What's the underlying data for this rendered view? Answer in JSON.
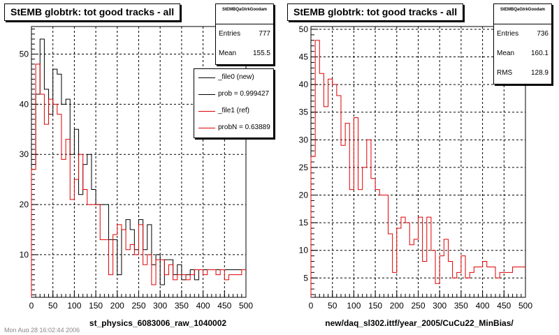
{
  "footer": "Mon Aug 28 16:02:44 2006",
  "chart_data": [
    {
      "type": "line",
      "title": "StEMB globtrk: tot good tracks - all",
      "xlabel": "st_physics_6083006_raw_1040002",
      "ylabel": "",
      "xlim": [
        0,
        500
      ],
      "ylim": [
        1.5,
        55.5
      ],
      "xticks": [
        "0",
        "50",
        "100",
        "150",
        "200",
        "250",
        "300",
        "350",
        "400",
        "450",
        "500"
      ],
      "yticks": [
        "10",
        "20",
        "30",
        "40",
        "50"
      ],
      "grid": true,
      "bin_edges": [
        0,
        10,
        20,
        30,
        40,
        50,
        60,
        70,
        80,
        90,
        100,
        110,
        120,
        130,
        140,
        150,
        160,
        170,
        180,
        190,
        200,
        210,
        220,
        230,
        240,
        250,
        260,
        270,
        280,
        290,
        300,
        310,
        320,
        330,
        340,
        350,
        360,
        370,
        380,
        390,
        400,
        410,
        420,
        430,
        440,
        450,
        460,
        470,
        480,
        490,
        500
      ],
      "series": [
        {
          "name": "_file0 (new)",
          "color": "#000000",
          "values": [
            28,
            42,
            53,
            43,
            38,
            47,
            46,
            40,
            41,
            30,
            35,
            22,
            28,
            30,
            23,
            20,
            20,
            20,
            13,
            13,
            6,
            15,
            17,
            15,
            11,
            17,
            11,
            16,
            8,
            10,
            4,
            9,
            9,
            6,
            8,
            5,
            6,
            7,
            5,
            7,
            7,
            7,
            7,
            7,
            7,
            7,
            7,
            7,
            7,
            7
          ]
        },
        {
          "name": "_file1 (ref)",
          "color": "#e00000",
          "values": [
            27,
            48,
            42,
            36,
            41,
            40,
            38,
            29,
            33,
            21,
            25,
            30,
            23,
            20,
            20,
            20,
            13,
            13,
            6,
            14,
            16,
            15,
            11,
            12,
            10,
            16,
            8,
            10,
            4,
            9,
            9,
            6,
            8,
            5,
            6,
            6,
            5,
            6,
            7,
            7,
            6,
            7,
            7,
            6,
            7,
            5,
            6,
            6,
            6,
            7
          ]
        }
      ],
      "stats": {
        "header": "StEMBQaGtrkGoodam",
        "entries": "777",
        "mean": "155.5"
      },
      "legend": [
        "_file0 (new)",
        "prob = 0.999427",
        "_file1 (ref)",
        "probN = 0.63889"
      ]
    },
    {
      "type": "line",
      "title": "StEMB globtrk: tot good tracks - all",
      "xlabel": "new/daq_sl302.ittf/year_2005/CuCu22_MinBias/",
      "ylabel": "",
      "xlim": [
        0,
        500
      ],
      "ylim": [
        1.5,
        50.5
      ],
      "xticks": [
        "0",
        "50",
        "100",
        "150",
        "200",
        "250",
        "300",
        "350",
        "400",
        "450",
        "500"
      ],
      "yticks": [
        "5",
        "10",
        "15",
        "20",
        "25",
        "30",
        "35",
        "40",
        "45",
        "50"
      ],
      "grid": true,
      "bin_edges": [
        0,
        10,
        20,
        30,
        40,
        50,
        60,
        70,
        80,
        90,
        100,
        110,
        120,
        130,
        140,
        150,
        160,
        170,
        180,
        190,
        200,
        210,
        220,
        230,
        240,
        250,
        260,
        270,
        280,
        290,
        300,
        310,
        320,
        330,
        340,
        350,
        360,
        370,
        380,
        390,
        400,
        410,
        420,
        430,
        440,
        450,
        460,
        470,
        480,
        490,
        500
      ],
      "series": [
        {
          "name": "",
          "color": "#e00000",
          "values": [
            27,
            48,
            42,
            36,
            41,
            40,
            38,
            29,
            33,
            21,
            34,
            21,
            25,
            30,
            23,
            21,
            20,
            20,
            13,
            6,
            14,
            16,
            15,
            11,
            12,
            16,
            8,
            16,
            10,
            4,
            9,
            12,
            8,
            5,
            6,
            9,
            5,
            6,
            7,
            7,
            8,
            7,
            7,
            5,
            6,
            6,
            6,
            7,
            7,
            7
          ]
        }
      ],
      "stats": {
        "header": "StEMBQaGtrkGoodam",
        "entries": "736",
        "mean": "160.1",
        "rms": "128.9"
      }
    }
  ]
}
